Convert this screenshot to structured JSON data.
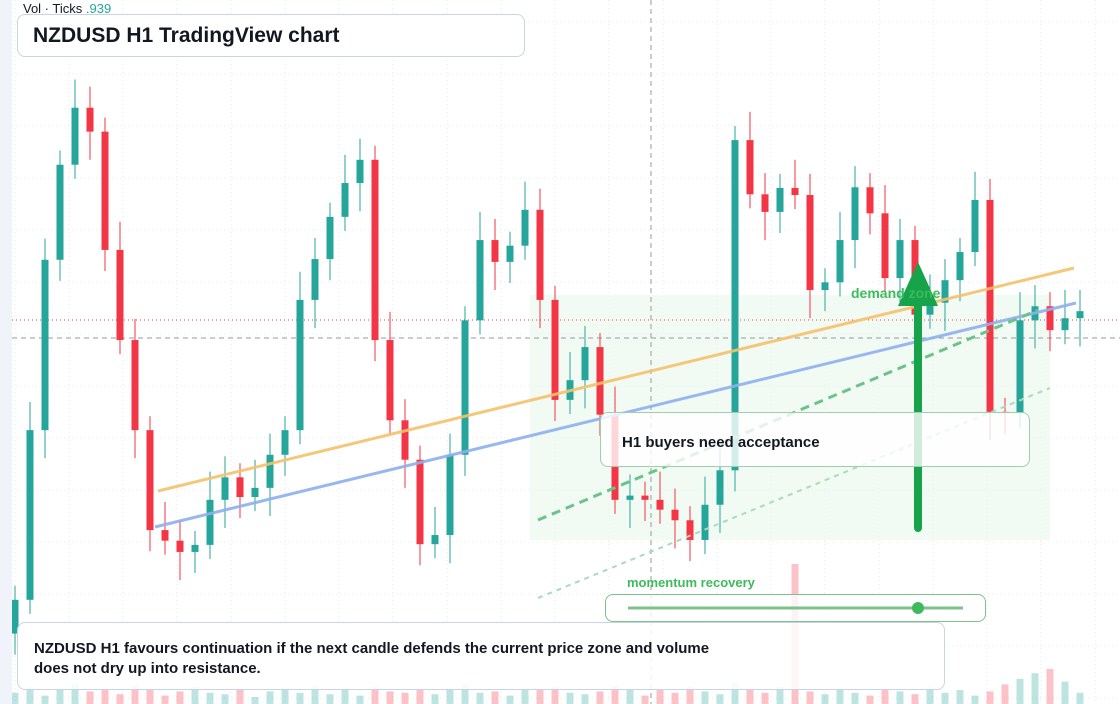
{
  "chart_data": {
    "type": "candlestick",
    "title": "NZDUSD H1 TradingView chart",
    "volume_label": "Vol · Ticks",
    "volume_value": ".939",
    "ylim": [
      0,
      100
    ],
    "volume_lim": [
      0,
      100
    ],
    "up_color": "#26a69a",
    "down_color": "#f23645",
    "open": [
      10.0,
      14.8,
      38.9,
      63.1,
      76.6,
      84.7,
      81.3,
      64.5,
      51.7,
      38.9,
      24.7,
      23.2,
      21.6,
      22.6,
      29.0,
      32.2,
      29.4,
      30.7,
      35.4,
      38.9,
      57.4,
      63.2,
      69.2,
      74.0,
      77.3,
      51.7,
      40.3,
      34.7,
      22.7,
      24.0,
      35.4,
      54.5,
      65.9,
      62.8,
      65.1,
      70.2,
      57.4,
      43.2,
      46.0,
      50.7,
      41.1,
      29.0,
      29.6,
      29.0,
      27.6,
      26.1,
      23.3,
      28.3,
      33.2,
      80.1,
      72.4,
      69.9,
      73.3,
      72.3,
      58.8,
      59.9,
      65.9,
      73.4,
      69.7,
      60.5,
      65.9,
      55.3,
      57.0,
      60.2,
      64.2,
      71.6,
      41.5,
      41.3,
      54.5,
      56.5,
      53.1,
      54.8
    ],
    "high": [
      16.8,
      42.9,
      66.1,
      78.6,
      88.7,
      87.7,
      83.3,
      68.5,
      54.7,
      40.9,
      28.7,
      26.2,
      24.6,
      33.0,
      35.2,
      34.2,
      34.7,
      38.4,
      40.9,
      61.4,
      66.2,
      71.2,
      78.0,
      80.3,
      79.3,
      55.7,
      43.3,
      36.7,
      28.0,
      38.4,
      56.5,
      69.9,
      68.9,
      67.1,
      74.2,
      73.2,
      59.4,
      50.0,
      53.7,
      52.7,
      45.1,
      32.6,
      31.6,
      33.0,
      30.6,
      28.1,
      32.3,
      36.2,
      82.1,
      84.1,
      75.4,
      75.3,
      77.3,
      75.3,
      61.9,
      69.9,
      76.4,
      75.4,
      73.7,
      68.9,
      67.9,
      61.0,
      63.2,
      66.2,
      75.6,
      74.6,
      43.5,
      58.5,
      59.5,
      58.5,
      58.8,
      58.8
    ],
    "low": [
      7.0,
      12.8,
      34.9,
      60.1,
      74.6,
      77.3,
      61.5,
      49.7,
      34.9,
      21.7,
      21.2,
      17.6,
      18.6,
      20.6,
      25.0,
      26.4,
      27.4,
      26.7,
      32.4,
      36.9,
      53.4,
      60.2,
      67.2,
      70.0,
      48.7,
      38.3,
      30.7,
      19.7,
      20.7,
      20.0,
      32.4,
      52.5,
      58.8,
      59.8,
      63.1,
      53.4,
      40.2,
      41.2,
      42.0,
      38.1,
      27.0,
      25.0,
      26.0,
      25.6,
      22.1,
      20.3,
      21.3,
      24.3,
      30.2,
      70.4,
      65.9,
      66.9,
      70.3,
      54.8,
      55.8,
      57.9,
      61.9,
      66.7,
      58.5,
      56.5,
      52.3,
      53.3,
      53.0,
      57.2,
      62.2,
      37.5,
      38.3,
      39.3,
      50.5,
      50.1,
      51.1,
      50.8
    ],
    "close": [
      14.8,
      38.9,
      63.1,
      76.6,
      84.7,
      81.3,
      64.5,
      51.7,
      38.9,
      24.7,
      23.2,
      21.6,
      22.6,
      29.0,
      32.2,
      29.4,
      30.7,
      35.4,
      38.9,
      57.4,
      63.2,
      69.2,
      74.0,
      77.3,
      51.7,
      40.3,
      34.7,
      22.7,
      24.0,
      35.4,
      54.5,
      65.9,
      62.8,
      65.1,
      70.2,
      57.4,
      43.2,
      46.0,
      50.7,
      41.1,
      29.0,
      29.6,
      29.0,
      27.6,
      26.1,
      23.3,
      28.3,
      33.2,
      80.1,
      72.4,
      69.9,
      73.3,
      72.3,
      58.8,
      59.9,
      65.9,
      73.4,
      69.7,
      60.5,
      65.9,
      55.3,
      57.0,
      60.2,
      64.2,
      71.6,
      41.5,
      41.3,
      54.5,
      56.5,
      53.1,
      54.8,
      55.8
    ],
    "volume": [
      8,
      12,
      6,
      10,
      14,
      9,
      11,
      7,
      13,
      10,
      6,
      9,
      12,
      8,
      7,
      10,
      5,
      9,
      11,
      8,
      13,
      7,
      10,
      6,
      12,
      9,
      8,
      11,
      7,
      10,
      14,
      8,
      9,
      6,
      11,
      10,
      12,
      8,
      7,
      9,
      13,
      11,
      6,
      10,
      8,
      12,
      9,
      7,
      15,
      10,
      8,
      12,
      100,
      9,
      7,
      10,
      8,
      6,
      11,
      9,
      7,
      12,
      8,
      10,
      6,
      9,
      14,
      18,
      22,
      25,
      16,
      8
    ],
    "annotations": {
      "zone": "demand zone",
      "acceptance": "H1 buyers need acceptance",
      "momentum": "momentum recovery",
      "note": "NZDUSD H1 favours continuation if the next candle defends the current price zone and volume does not dry up into resistance."
    }
  }
}
